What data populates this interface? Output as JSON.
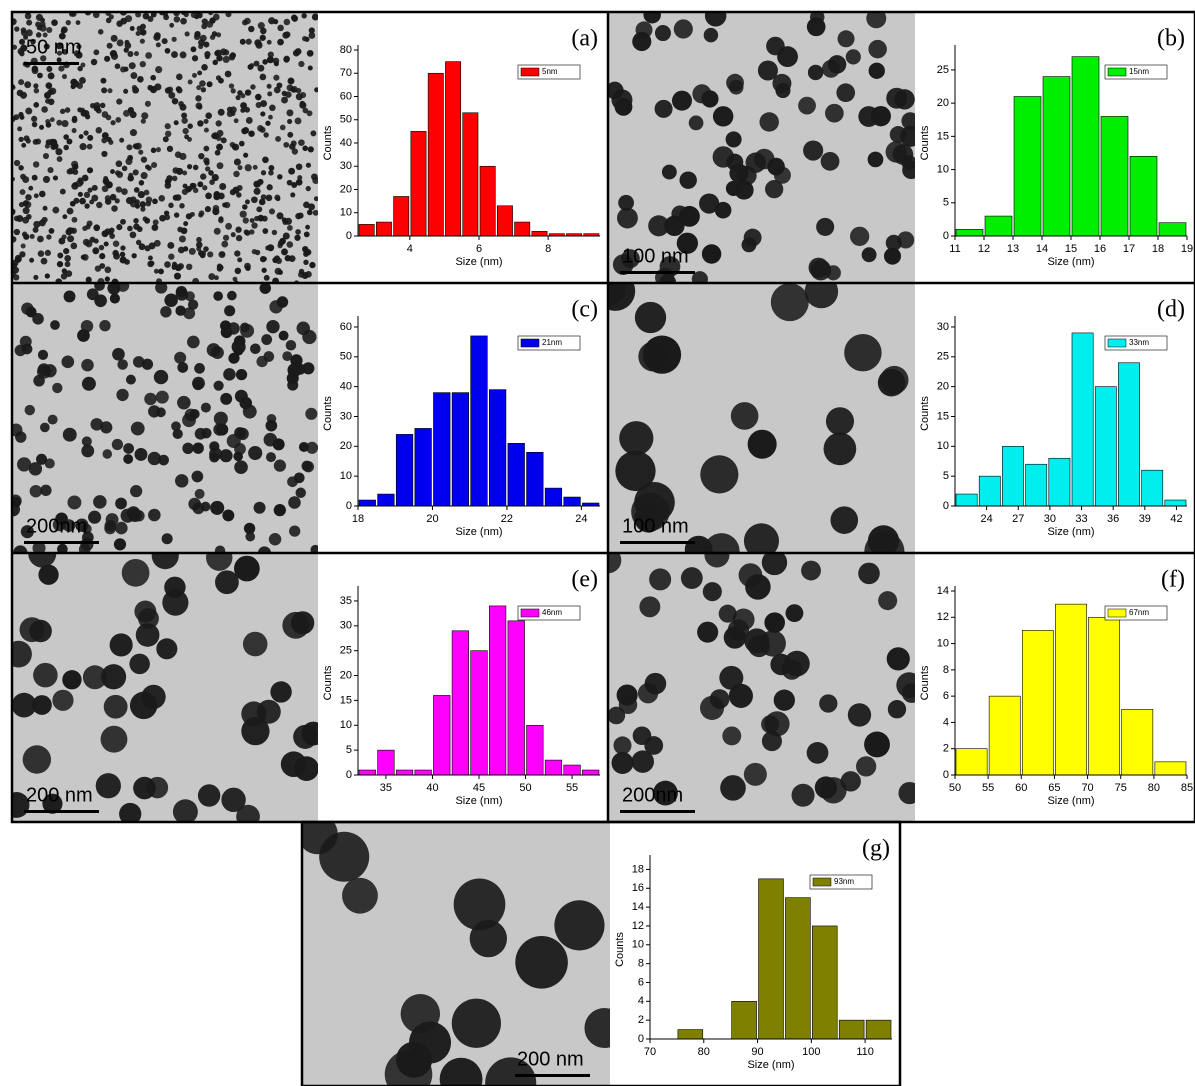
{
  "chart_data": [
    {
      "type": "histogram",
      "label": "(a)",
      "x_label": "Size (nm)",
      "y_label": "Counts",
      "bins": [
        2.5,
        3,
        3.5,
        4,
        4.5,
        5,
        5.5,
        6,
        6.5,
        7,
        7.5,
        8,
        8.5,
        9,
        9.5
      ],
      "series": [
        {
          "name": "5nm",
          "color": "#ff0000",
          "values": [
            5,
            6,
            17,
            45,
            70,
            75,
            53,
            30,
            13,
            6,
            2,
            1,
            1,
            1
          ]
        }
      ],
      "xlim": [
        2.5,
        9.5
      ],
      "xticks": [
        4,
        6,
        8
      ],
      "ylim": [
        0,
        80
      ],
      "yticks": [
        0,
        10,
        20,
        30,
        40,
        50,
        60,
        70,
        80
      ]
    },
    {
      "type": "histogram",
      "label": "(b)",
      "x_label": "Size (nm)",
      "y_label": "Counts",
      "bins": [
        11,
        12,
        13,
        14,
        15,
        16,
        17,
        18,
        19
      ],
      "series": [
        {
          "name": "15nm",
          "color": "#00ee00",
          "values": [
            1,
            3,
            21,
            24,
            27,
            18,
            12,
            2
          ]
        }
      ],
      "xlim": [
        11,
        19
      ],
      "xticks": [
        11,
        12,
        13,
        14,
        15,
        16,
        17,
        18,
        19
      ],
      "ylim": [
        0,
        28
      ],
      "yticks": [
        0,
        5,
        10,
        15,
        20,
        25
      ]
    },
    {
      "type": "histogram",
      "label": "(c)",
      "x_label": "Size (nm)",
      "y_label": "Counts",
      "bins": [
        18,
        18.5,
        19,
        19.5,
        20,
        20.5,
        21,
        21.5,
        22,
        22.5,
        23,
        23.5,
        24,
        24.5
      ],
      "series": [
        {
          "name": "21nm",
          "color": "#0000ee",
          "values": [
            2,
            4,
            24,
            26,
            38,
            38,
            57,
            39,
            21,
            18,
            6,
            3,
            1
          ]
        }
      ],
      "xlim": [
        18,
        24.5
      ],
      "xticks": [
        18,
        20,
        22,
        24
      ],
      "ylim": [
        0,
        62
      ],
      "yticks": [
        0,
        10,
        20,
        30,
        40,
        50,
        60
      ]
    },
    {
      "type": "histogram",
      "label": "(d)",
      "x_label": "Size (nm)",
      "y_label": "Counts",
      "bins": [
        21,
        23.2,
        25.4,
        27.6,
        29.8,
        32,
        34.2,
        36.4,
        38.6,
        40.8,
        43
      ],
      "series": [
        {
          "name": "33nm",
          "color": "#00eeee",
          "values": [
            2,
            5,
            10,
            7,
            8,
            29,
            20,
            24,
            6,
            1
          ]
        }
      ],
      "xlim": [
        21,
        43
      ],
      "xticks": [
        24,
        27,
        30,
        33,
        36,
        39,
        42
      ],
      "ylim": [
        0,
        31
      ],
      "yticks": [
        0,
        5,
        10,
        15,
        20,
        25,
        30
      ]
    },
    {
      "type": "histogram",
      "label": "(e)",
      "x_label": "Size (nm)",
      "y_label": "Counts",
      "bins": [
        32,
        34,
        36,
        38,
        40,
        42,
        44,
        46,
        48,
        50,
        52,
        54,
        56,
        58
      ],
      "series": [
        {
          "name": "46nm",
          "color": "#ff00ff",
          "values": [
            1,
            5,
            1,
            1,
            16,
            29,
            25,
            34,
            31,
            10,
            3,
            2,
            1
          ]
        }
      ],
      "xlim": [
        32,
        58
      ],
      "xticks": [
        35,
        40,
        45,
        50,
        55
      ],
      "ylim": [
        0,
        37
      ],
      "yticks": [
        0,
        5,
        10,
        15,
        20,
        25,
        30,
        35
      ]
    },
    {
      "type": "histogram",
      "label": "(f)",
      "x_label": "Size (nm)",
      "y_label": "Counts",
      "bins": [
        50,
        55,
        60,
        65,
        70,
        75,
        80,
        85
      ],
      "series": [
        {
          "name": "67nm",
          "color": "#ffff00",
          "values": [
            2,
            6,
            11,
            13,
            12,
            5,
            1
          ]
        }
      ],
      "xlim": [
        50,
        85
      ],
      "xticks": [
        50,
        55,
        60,
        65,
        70,
        75,
        80,
        85
      ],
      "ylim": [
        0,
        14
      ],
      "yticks": [
        0,
        2,
        4,
        6,
        8,
        10,
        12,
        14
      ]
    },
    {
      "type": "histogram",
      "label": "(g)",
      "x_label": "Size (nm)",
      "y_label": "Counts",
      "bins": [
        75,
        80,
        85,
        90,
        95,
        100,
        105,
        110,
        115
      ],
      "series": [
        {
          "name": "93nm",
          "color": "#808000",
          "values": [
            1,
            0,
            4,
            17,
            15,
            12,
            2,
            2
          ]
        }
      ],
      "xlim": [
        70,
        115
      ],
      "xticks": [
        70,
        80,
        90,
        100,
        110
      ],
      "ylim": [
        0,
        19
      ],
      "yticks": [
        0,
        2,
        4,
        6,
        8,
        10,
        12,
        14,
        16,
        18
      ]
    }
  ],
  "images": [
    {
      "scale_bar": "50 nm"
    },
    {
      "scale_bar": "100 nm"
    },
    {
      "scale_bar": "200nm"
    },
    {
      "scale_bar": "100 nm"
    },
    {
      "scale_bar": "200 nm"
    },
    {
      "scale_bar": "200nm"
    },
    {
      "scale_bar": "200 nm"
    }
  ]
}
